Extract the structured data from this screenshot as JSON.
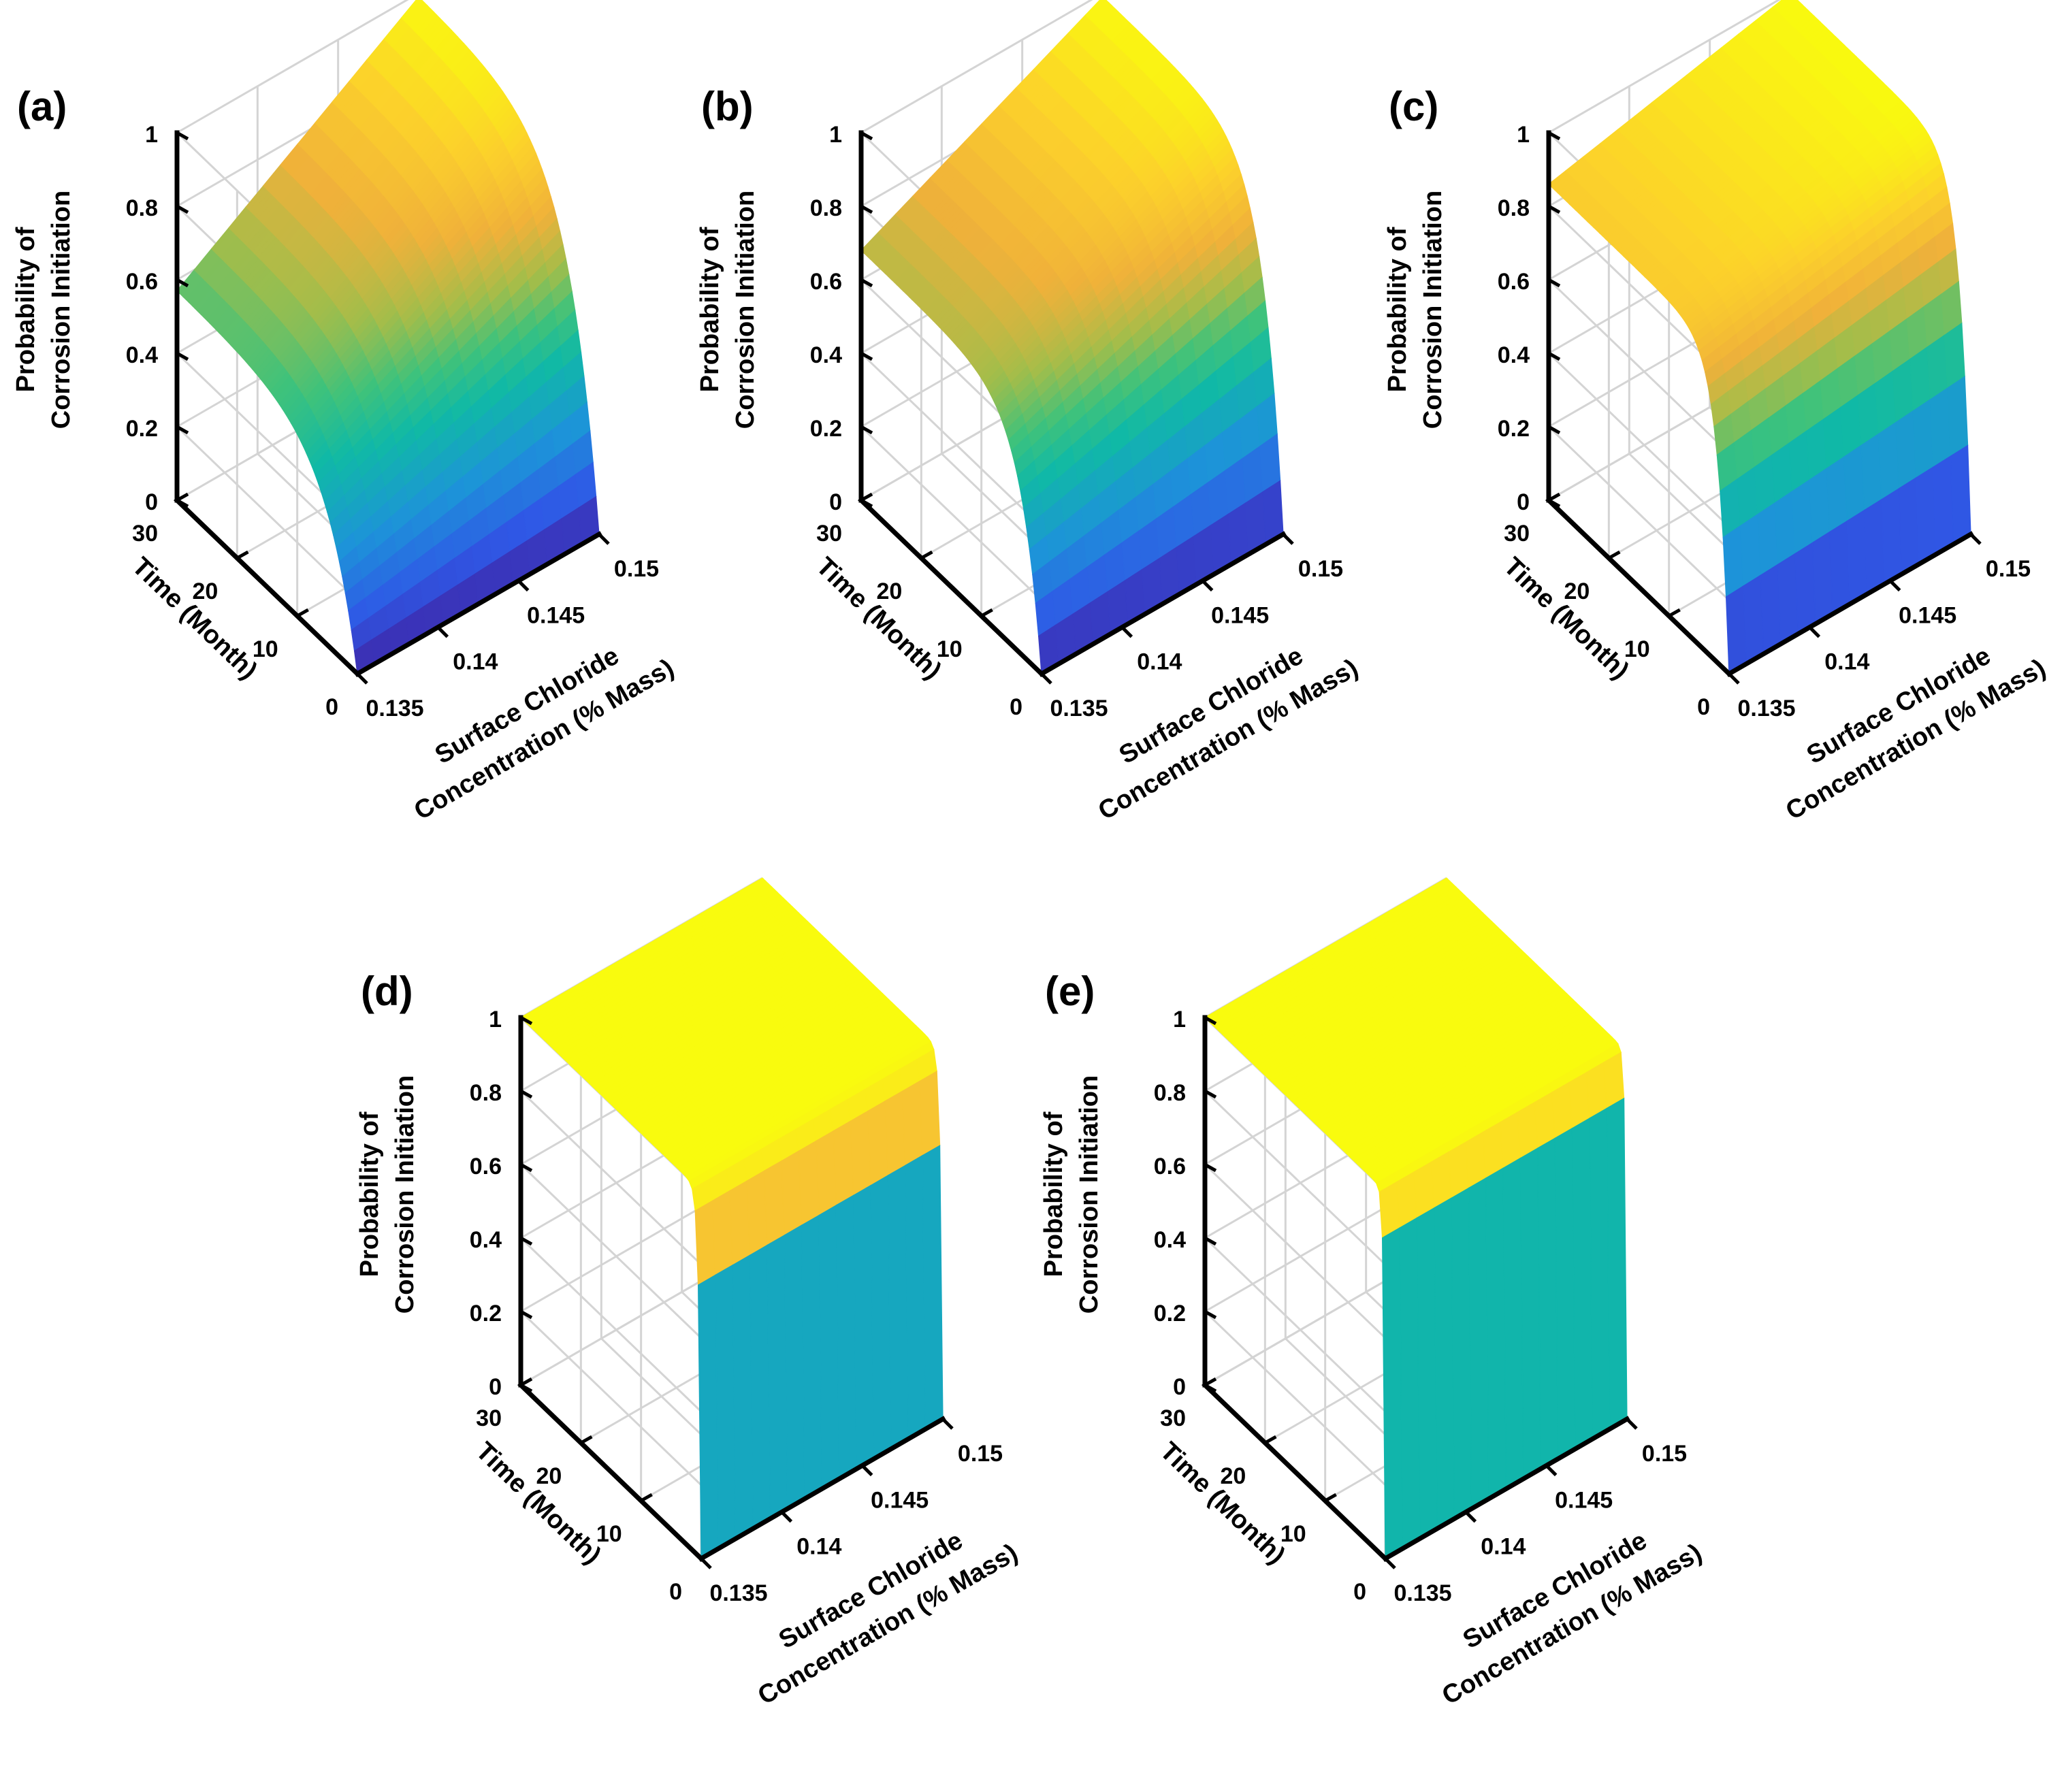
{
  "figure": {
    "panels": [
      "a",
      "b",
      "c",
      "d",
      "e"
    ]
  },
  "chart_data": [
    {
      "type": "surface",
      "panel_label": "(a)",
      "xlabel": [
        "Surface Chloride",
        "Concentration (% Mass)"
      ],
      "ylabel": "Time (Month)",
      "zlabel": [
        "Probability of",
        "Corrosion Initiation"
      ],
      "xticks": [
        "0.135",
        "0.14",
        "0.145",
        "0.15"
      ],
      "yticks": [
        "0",
        "10",
        "20",
        "30"
      ],
      "zticks": [
        "0",
        "0.2",
        "0.4",
        "0.6",
        "0.8",
        "1"
      ],
      "xlim": [
        0.135,
        0.15
      ],
      "ylim": [
        0,
        30
      ],
      "zlim": [
        0,
        1
      ],
      "grid": true,
      "steepness": 6,
      "z_at_max_time": {
        "x_min": 0.57,
        "x_max": 0.99
      },
      "colormap": "parula"
    },
    {
      "type": "surface",
      "panel_label": "(b)",
      "xlabel": [
        "Surface Chloride",
        "Concentration (% Mass)"
      ],
      "ylabel": "Time (Month)",
      "zlabel": [
        "Probability of",
        "Corrosion Initiation"
      ],
      "xticks": [
        "0.135",
        "0.14",
        "0.145",
        "0.15"
      ],
      "yticks": [
        "0",
        "10",
        "20",
        "30"
      ],
      "zticks": [
        "0",
        "0.2",
        "0.4",
        "0.6",
        "0.8",
        "1"
      ],
      "xlim": [
        0.135,
        0.15
      ],
      "ylim": [
        0,
        30
      ],
      "zlim": [
        0,
        1
      ],
      "grid": true,
      "steepness": 9,
      "z_at_max_time": {
        "x_min": 0.68,
        "x_max": 0.99
      },
      "colormap": "parula"
    },
    {
      "type": "surface",
      "panel_label": "(c)",
      "xlabel": [
        "Surface Chloride",
        "Concentration (% Mass)"
      ],
      "ylabel": "Time (Month)",
      "zlabel": [
        "Probability of",
        "Corrosion Initiation"
      ],
      "xticks": [
        "0.135",
        "0.14",
        "0.145",
        "0.15"
      ],
      "yticks": [
        "0",
        "10",
        "20",
        "30"
      ],
      "zticks": [
        "0",
        "0.2",
        "0.4",
        "0.6",
        "0.8",
        "1"
      ],
      "xlim": [
        0.135,
        0.15
      ],
      "ylim": [
        0,
        30
      ],
      "zlim": [
        0,
        1
      ],
      "grid": true,
      "steepness": 16,
      "z_at_max_time": {
        "x_min": 0.86,
        "x_max": 1.0
      },
      "colormap": "parula"
    },
    {
      "type": "surface",
      "panel_label": "(d)",
      "xlabel": [
        "Surface Chloride",
        "Concentration (% Mass)"
      ],
      "ylabel": "Time (Month)",
      "zlabel": [
        "Probability of",
        "Corrosion Initiation"
      ],
      "xticks": [
        "0.135",
        "0.14",
        "0.145",
        "0.15"
      ],
      "yticks": [
        "0",
        "10",
        "20",
        "30"
      ],
      "zticks": [
        "0",
        "0.2",
        "0.4",
        "0.6",
        "0.8",
        "1"
      ],
      "xlim": [
        0.135,
        0.15
      ],
      "ylim": [
        0,
        30
      ],
      "zlim": [
        0,
        1
      ],
      "grid": true,
      "steepness": 80,
      "z_at_max_time": {
        "x_min": 1.0,
        "x_max": 1.0
      },
      "colormap": "parula"
    },
    {
      "type": "surface",
      "panel_label": "(e)",
      "xlabel": [
        "Surface Chloride",
        "Concentration (% Mass)"
      ],
      "ylabel": "Time (Month)",
      "zlabel": [
        "Probability of",
        "Corrosion Initiation"
      ],
      "xticks": [
        "0.135",
        "0.14",
        "0.145",
        "0.15"
      ],
      "yticks": [
        "0",
        "10",
        "20",
        "30"
      ],
      "zticks": [
        "0",
        "0.2",
        "0.4",
        "0.6",
        "0.8",
        "1"
      ],
      "xlim": [
        0.135,
        0.15
      ],
      "ylim": [
        0,
        30
      ],
      "zlim": [
        0,
        1
      ],
      "grid": true,
      "steepness": 120,
      "z_at_max_time": {
        "x_min": 1.0,
        "x_max": 1.0
      },
      "colormap": "parula"
    }
  ]
}
